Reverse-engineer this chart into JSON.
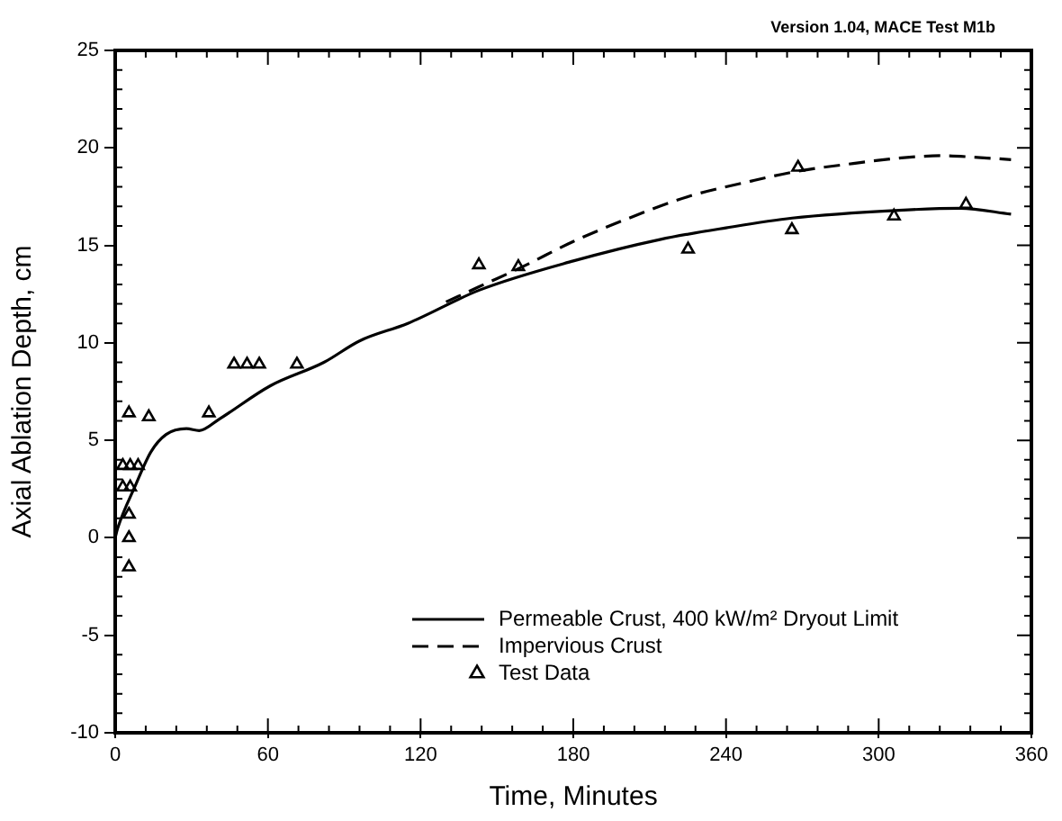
{
  "chart_data": {
    "type": "line",
    "xlabel": "Time, Minutes",
    "ylabel": "Axial Ablation Depth, cm",
    "annotations": [
      "Version 1.04, MACE Test M1b"
    ],
    "xlim": [
      0,
      360
    ],
    "xticks": [
      0,
      60,
      120,
      180,
      240,
      300,
      360
    ],
    "ylim": [
      -10,
      25
    ],
    "yticks": [
      -10,
      -5,
      0,
      5,
      10,
      15,
      20,
      25
    ],
    "grid": false,
    "legend": "bottom right",
    "series": [
      {
        "name": "Permeable Crust, 400 kW/m² Dryout Limit",
        "type": "line",
        "color": "#000000",
        "line_style": "solid",
        "marker": "none",
        "x": [
          0,
          1,
          8,
          14,
          20,
          28,
          33,
          41,
          61,
          82,
          96,
          115,
          143,
          180,
          214,
          240,
          266,
          308,
          332,
          352
        ],
        "values": [
          0,
          0.5,
          2.7,
          4.4,
          5.3,
          5.6,
          5.5,
          6.1,
          7.8,
          9.0,
          10.1,
          11.0,
          12.7,
          14.2,
          15.3,
          15.9,
          16.4,
          16.8,
          16.9,
          16.6
        ]
      },
      {
        "name": "Impervious Crust",
        "type": "line",
        "color": "#000000",
        "line_style": "dashed",
        "marker": "none",
        "x": [
          130,
          145,
          160,
          180,
          200,
          225,
          250,
          268,
          290,
          310,
          325,
          340,
          352
        ],
        "values": [
          12.1,
          13.0,
          13.9,
          15.2,
          16.3,
          17.5,
          18.3,
          18.8,
          19.2,
          19.5,
          19.6,
          19.5,
          19.4
        ]
      },
      {
        "name": "Test Data",
        "type": "scatter",
        "color": "#000000",
        "marker": "triangle",
        "x": [
          3,
          5.9,
          9,
          3,
          5.9,
          5.4,
          5.4,
          5.4,
          5.4,
          13.2,
          36.8,
          46.7,
          51.8,
          56.6,
          71.4,
          142.9,
          158.4,
          225.1,
          265.9,
          268.3,
          306,
          334.3
        ],
        "values": [
          3.7,
          3.7,
          3.7,
          2.6,
          2.6,
          1.2,
          0,
          -1.5,
          6.4,
          6.2,
          6.4,
          8.9,
          8.9,
          8.9,
          8.9,
          14.0,
          13.9,
          14.8,
          15.8,
          19.0,
          16.5,
          17.1
        ]
      }
    ]
  }
}
